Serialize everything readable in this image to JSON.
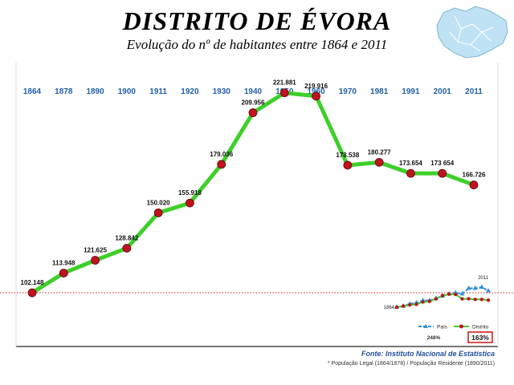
{
  "header": {
    "title": "DISTRITO DE ÉVORA",
    "subtitle": "Evolução do nº de habitantes entre 1864 e 2011"
  },
  "chart_data": {
    "type": "line",
    "title": "DISTRITO DE ÉVORA",
    "subtitle": "Evolução do nº de habitantes entre 1864 e 2011",
    "categories": [
      "1864",
      "1878",
      "1890",
      "1900",
      "1911",
      "1920",
      "1930",
      "1940",
      "1950",
      "1960",
      "1970",
      "1981",
      "1991",
      "2001",
      "2011"
    ],
    "series": [
      {
        "name": "Distrito",
        "values": [
          102148,
          113948,
          121625,
          128842,
          150020,
          155918,
          179036,
          209956,
          221881,
          219916,
          178538,
          180277,
          173654,
          173654,
          166726
        ],
        "labels": [
          "102.148",
          "113.948",
          "121.625",
          "128.842",
          "150.020",
          "155.918",
          "179.036",
          "209.956",
          "221.881",
          "219.916",
          "178.538",
          "180.277",
          "173.654",
          "173 654",
          "166.726"
        ],
        "color": "#3ecf2a",
        "marker_color": "#c1121f"
      }
    ],
    "ylim": [
      70000,
      240000
    ],
    "reference_line": {
      "value": 102148,
      "color": "#e02020",
      "style": "dotted"
    },
    "xlabel": "",
    "ylabel": "",
    "inset": {
      "type": "line",
      "series": [
        {
          "name": "País",
          "values": [
            1.0,
            1.1,
            1.3,
            1.4,
            1.6,
            1.6,
            1.8,
            2.0,
            2.2,
            2.3,
            2.2,
            2.7,
            2.7,
            2.8,
            2.48
          ],
          "color": "#2f8fd8",
          "marker": "triangle"
        },
        {
          "name": "Distrito",
          "values": [
            1.0,
            1.1,
            1.2,
            1.26,
            1.47,
            1.53,
            1.75,
            2.05,
            2.17,
            2.15,
            1.75,
            1.76,
            1.7,
            1.7,
            1.63
          ],
          "color": "#3ecf2a",
          "marker": "circle"
        }
      ],
      "start_label": "1864",
      "end_label": "2011",
      "pais_growth": "248%",
      "distrito_growth": "163%",
      "legend": [
        "País",
        "Distrito"
      ]
    }
  },
  "footer": {
    "source": "Fonte: Instituto Nacional de Estatística",
    "note": "* População Legal (1864/1878) / População Residente (1890/2011)"
  }
}
